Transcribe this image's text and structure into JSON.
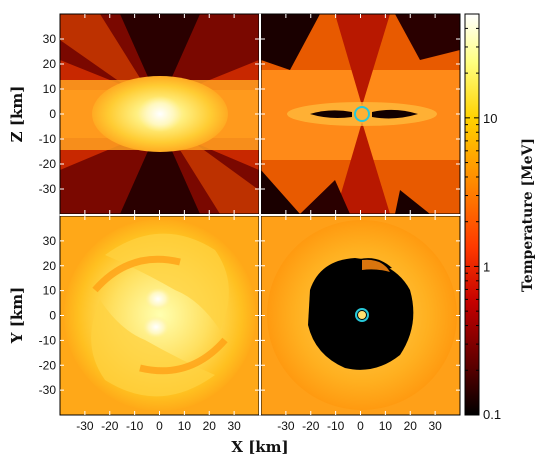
{
  "chart_data": {
    "type": "heatmap",
    "layout": "2x2 panels",
    "axis_labels": {
      "x": "X [km]",
      "z": "Z [km]",
      "y": "Y [km]"
    },
    "xlim": [
      -40,
      40
    ],
    "zlim": [
      -40,
      40
    ],
    "ylim": [
      -40,
      40
    ],
    "x_ticks": [
      -30,
      -20,
      -10,
      0,
      10,
      20,
      30
    ],
    "y_ticks": [
      -30,
      -20,
      -10,
      0,
      10,
      20,
      30
    ],
    "x_tick_labels": [
      "-30",
      "-20",
      "-10",
      "0",
      "10",
      "20",
      "30"
    ],
    "y_tick_labels": [
      "-30",
      "-20",
      "-10",
      "0",
      "10",
      "20",
      "30"
    ],
    "panels": [
      {
        "id": "top-left",
        "plane": "X-Z",
        "description": "hot torus of ~10 MeV matter around center, cooler polar funnels"
      },
      {
        "id": "top-right",
        "plane": "X-Z",
        "description": "black hole formed at center, cold thin disk band along equator",
        "marker": "apparent horizon circle"
      },
      {
        "id": "bottom-left",
        "plane": "X-Y",
        "description": "spiral arms, two hot cores near center"
      },
      {
        "id": "bottom-right",
        "plane": "X-Y",
        "description": "black hole at center surrounded by cold region",
        "marker": "apparent horizon circle"
      }
    ],
    "colorbar": {
      "label": "Temperature [MeV]",
      "scale": "log",
      "range": [
        0.1,
        50
      ],
      "tick_values": [
        0.1,
        1,
        10
      ],
      "tick_labels": [
        "0.1",
        "1",
        "10"
      ],
      "colormap": [
        "#000000",
        "#5a0000",
        "#c40000",
        "#ff3a00",
        "#ff8a00",
        "#ffd200",
        "#ffff80",
        "#ffffff"
      ]
    },
    "marker_color": "#28c8d8"
  }
}
